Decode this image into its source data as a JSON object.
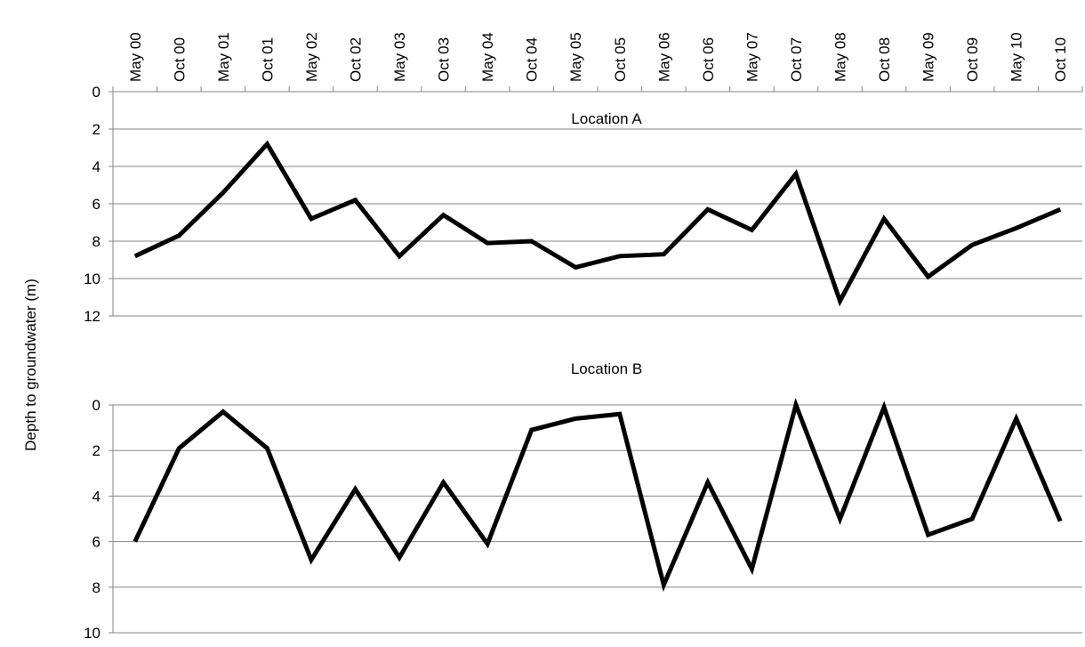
{
  "chart_data": [
    {
      "type": "line",
      "title": "Location A",
      "ylabel": "Depth to groundwater (m)",
      "categories": [
        "May 00",
        "Oct 00",
        "May 01",
        "Oct 01",
        "May 02",
        "Oct 02",
        "May 03",
        "Oct 03",
        "May 04",
        "Oct 04",
        "May 05",
        "Oct 05",
        "May 06",
        "Oct 06",
        "May 07",
        "Oct 07",
        "May 08",
        "Oct 08",
        "May 09",
        "Oct 09",
        "May 10",
        "Oct 10"
      ],
      "values": [
        8.8,
        7.7,
        5.4,
        2.8,
        6.8,
        5.8,
        8.8,
        6.6,
        8.1,
        8.0,
        9.4,
        8.8,
        8.7,
        6.3,
        7.4,
        4.4,
        11.2,
        6.8,
        9.9,
        8.2,
        7.3,
        6.3
      ],
      "color": "#000000",
      "ylim": [
        0,
        12
      ],
      "yticks": [
        0,
        2,
        4,
        6,
        8,
        10,
        12
      ],
      "reverse_y": true,
      "grid": true
    },
    {
      "type": "line",
      "title": "Location B",
      "values": [
        6.0,
        1.9,
        0.3,
        1.9,
        6.8,
        3.7,
        6.7,
        3.4,
        6.1,
        1.1,
        0.6,
        0.4,
        7.9,
        3.4,
        7.2,
        0.0,
        5.0,
        0.1,
        5.7,
        5.0,
        0.6,
        5.1
      ],
      "color": "#000000",
      "ylim": [
        0,
        10
      ],
      "yticks": [
        0,
        2,
        4,
        6,
        8,
        10
      ],
      "reverse_y": true,
      "grid": true
    }
  ]
}
